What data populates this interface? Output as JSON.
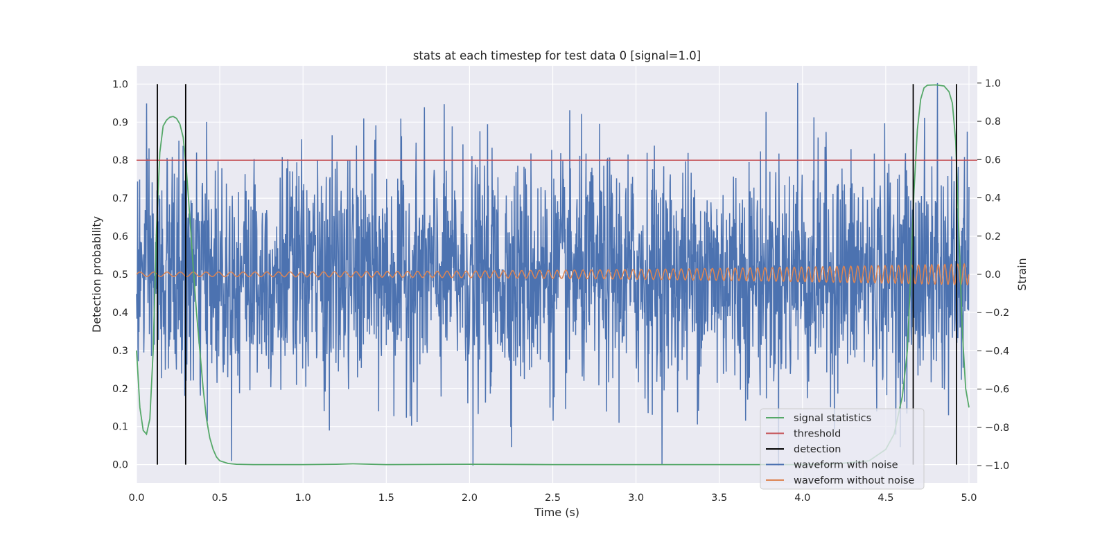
{
  "chart_data": {
    "type": "line",
    "title": "stats at each timestep for test data 0 [signal=1.0]",
    "xlabel": "Time (s)",
    "ylabel_left": "Detection probability",
    "ylabel_right": "Strain",
    "xlim": [
      0.0,
      5.05
    ],
    "ylim_left": [
      -0.048,
      1.048
    ],
    "ylim_right": [
      -1.09,
      1.09
    ],
    "x_ticks": [
      "0.0",
      "0.5",
      "1.0",
      "1.5",
      "2.0",
      "2.5",
      "3.0",
      "3.5",
      "4.0",
      "4.5",
      "5.0"
    ],
    "y_ticks_left": [
      "0.0",
      "0.1",
      "0.2",
      "0.3",
      "0.4",
      "0.5",
      "0.6",
      "0.7",
      "0.8",
      "0.9",
      "1.0"
    ],
    "y_ticks_right": [
      "−1.0",
      "−0.8",
      "−0.6",
      "−0.4",
      "−0.2",
      "0.0",
      "0.2",
      "0.4",
      "0.6",
      "0.8",
      "1.0"
    ],
    "grid": true,
    "legend_position": "lower-right",
    "colors": {
      "background": "#eaeaf2",
      "grid": "#ffffff",
      "signal_statistics": "#55a868",
      "threshold": "#c44e52",
      "detection": "#000000",
      "waveform_with_noise": "#4c72b0",
      "waveform_without_noise": "#dd8452"
    },
    "series": [
      {
        "name": "signal statistics",
        "axis": "left",
        "x": [
          0.0,
          0.02,
          0.04,
          0.06,
          0.08,
          0.1,
          0.12,
          0.14,
          0.16,
          0.18,
          0.2,
          0.22,
          0.24,
          0.26,
          0.28,
          0.3,
          0.32,
          0.34,
          0.36,
          0.38,
          0.4,
          0.42,
          0.44,
          0.46,
          0.48,
          0.5,
          0.55,
          0.6,
          0.7,
          1.0,
          1.2,
          1.3,
          1.5,
          2.0,
          2.5,
          3.0,
          3.5,
          4.0,
          4.2,
          4.4,
          4.5,
          4.55,
          4.6,
          4.63,
          4.65,
          4.67,
          4.69,
          4.71,
          4.73,
          4.75,
          4.8,
          4.85,
          4.88,
          4.9,
          4.92,
          4.94,
          4.96,
          4.98,
          5.0
        ],
        "y": [
          0.3,
          0.15,
          0.09,
          0.08,
          0.12,
          0.3,
          0.62,
          0.82,
          0.89,
          0.905,
          0.913,
          0.915,
          0.91,
          0.895,
          0.86,
          0.77,
          0.65,
          0.52,
          0.4,
          0.3,
          0.2,
          0.12,
          0.07,
          0.04,
          0.02,
          0.01,
          0.003,
          0.001,
          0.0,
          0.0,
          0.001,
          0.002,
          0.0,
          0.001,
          0.0,
          0.0,
          0.0,
          0.0,
          0.002,
          0.01,
          0.04,
          0.08,
          0.18,
          0.3,
          0.5,
          0.72,
          0.88,
          0.96,
          0.99,
          0.997,
          0.998,
          0.995,
          0.98,
          0.95,
          0.85,
          0.6,
          0.35,
          0.2,
          0.15
        ]
      },
      {
        "name": "threshold",
        "axis": "left",
        "x": [
          0.0,
          5.05
        ],
        "y": [
          0.8,
          0.8
        ]
      },
      {
        "name": "detection",
        "axis": "left",
        "type": "vlines",
        "x": [
          0.125,
          0.295,
          4.665,
          4.925
        ],
        "ymin": 0.0,
        "ymax": 1.0
      },
      {
        "name": "waveform with noise",
        "axis": "right",
        "type": "noise",
        "x_range": [
          0.0,
          5.0
        ],
        "std": 0.3,
        "min": -1.0,
        "max": 1.0,
        "notable_points": [
          {
            "x": 2.02,
            "y": -1.0
          },
          {
            "x": 3.97,
            "y": 1.0
          },
          {
            "x": 4.81,
            "y": 1.0
          }
        ]
      },
      {
        "name": "waveform without noise",
        "axis": "right",
        "type": "chirp",
        "x_range": [
          0.0,
          5.0
        ],
        "amplitude_start": 0.012,
        "amplitude_end": 0.055,
        "frequency_start_hz": 12,
        "frequency_end_hz": 26
      }
    ]
  }
}
